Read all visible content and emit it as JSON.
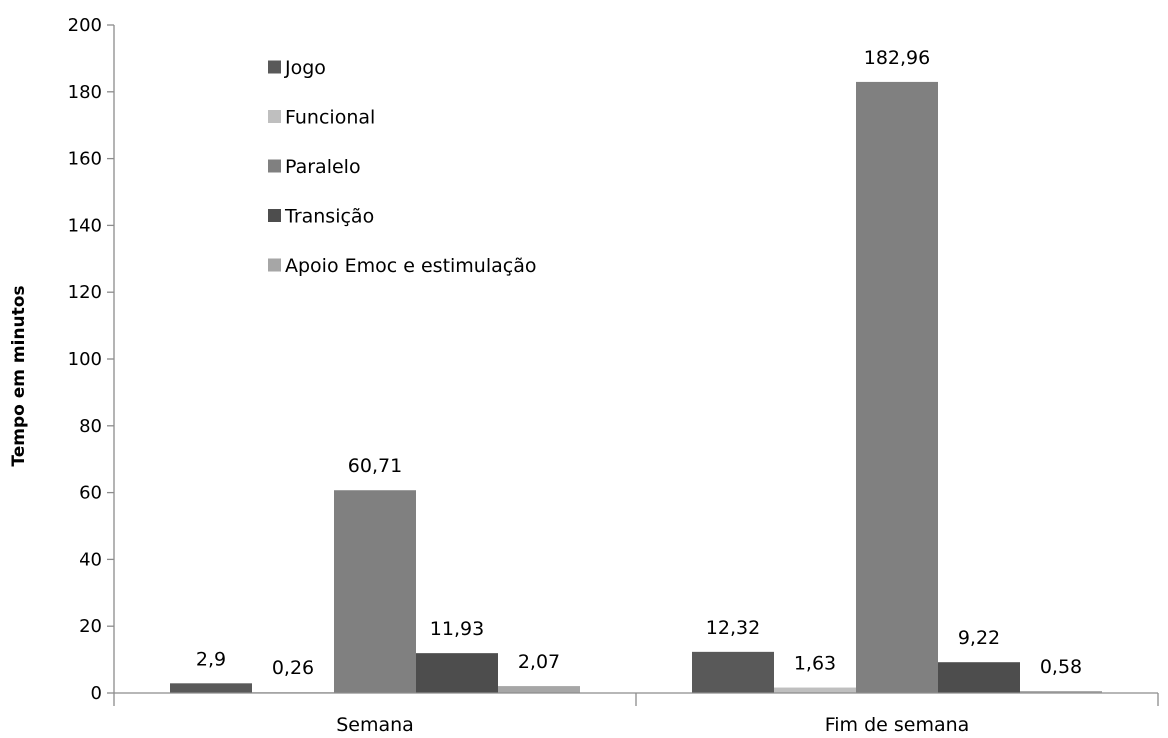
{
  "chart_data": {
    "type": "bar",
    "title": "",
    "ylabel": "Tempo em minutos",
    "xlabel": "",
    "ylim": [
      0,
      200
    ],
    "yticks": [
      0,
      20,
      40,
      60,
      80,
      100,
      120,
      140,
      160,
      180,
      200
    ],
    "grid": false,
    "legend_position": "top-left",
    "categories": [
      "Semana",
      "Fim de semana"
    ],
    "series": [
      {
        "name": "Jogo",
        "color": "#595959",
        "values": [
          2.9,
          12.32
        ],
        "labels": [
          "2,9",
          "12,32"
        ]
      },
      {
        "name": "Funcional",
        "color": "#bfbfbf",
        "values": [
          0.26,
          1.63
        ],
        "labels": [
          "0,26",
          "1,63"
        ]
      },
      {
        "name": "Paralelo",
        "color": "#808080",
        "values": [
          60.71,
          182.96
        ],
        "labels": [
          "60,71",
          "182,96"
        ]
      },
      {
        "name": "Transição",
        "color": "#4d4d4d",
        "values": [
          11.93,
          9.22
        ],
        "labels": [
          "11,93",
          "9,22"
        ]
      },
      {
        "name": "Apoio Emoc e estimulação",
        "color": "#a6a6a6",
        "values": [
          2.07,
          0.58
        ],
        "labels": [
          "2,07",
          "0,58"
        ]
      }
    ]
  }
}
